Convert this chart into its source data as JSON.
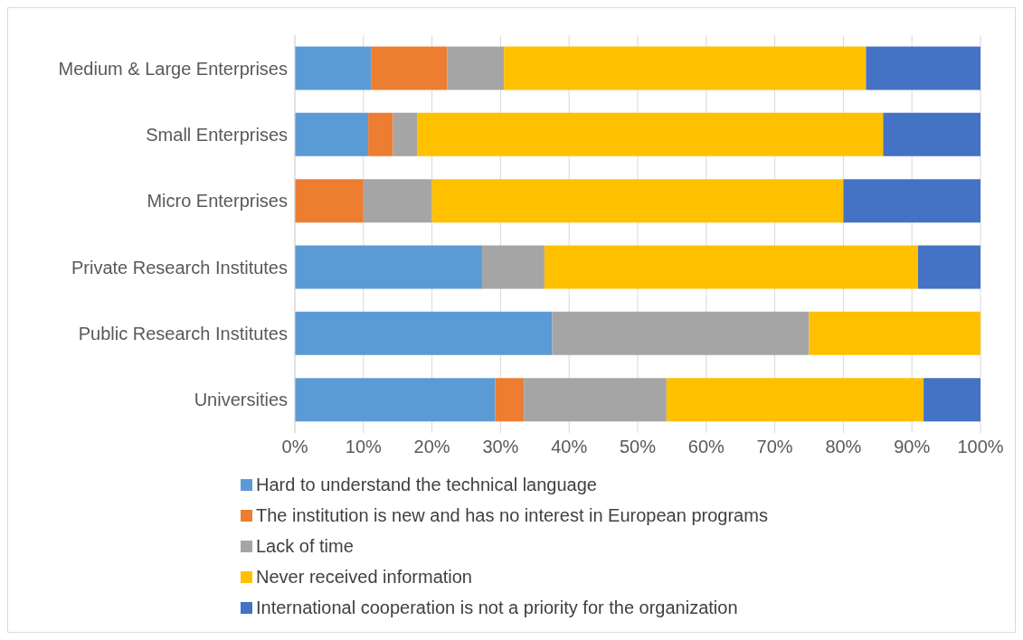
{
  "chart_data": {
    "type": "bar",
    "orientation": "horizontal",
    "stacked": true,
    "categories": [
      "Medium & Large Enterprises",
      "Small Enterprises",
      "Micro Enterprises",
      "Private Research Institutes",
      "Public Research Institutes",
      "Universities"
    ],
    "series": [
      {
        "name": "Hard to understand the technical language",
        "color": "#5b9bd5",
        "values": [
          11.1,
          10.7,
          0,
          27.3,
          37.5,
          29.2
        ]
      },
      {
        "name": "The institution is new and has no interest in European programs",
        "color": "#ed7d31",
        "values": [
          11.1,
          3.6,
          10,
          0,
          0,
          4.2
        ]
      },
      {
        "name": "Lack of time",
        "color": "#a5a5a5",
        "values": [
          8.3,
          3.6,
          10,
          9.1,
          37.5,
          20.8
        ]
      },
      {
        "name": "Never received information",
        "color": "#ffc000",
        "values": [
          52.8,
          67.9,
          60,
          54.5,
          25,
          37.5
        ]
      },
      {
        "name": "International cooperation is not a priority for the organization",
        "color": "#4472c4",
        "values": [
          16.7,
          14.3,
          20,
          9.1,
          0,
          8.3
        ]
      }
    ],
    "xlim": [
      0,
      100
    ],
    "xticks": [
      {
        "value": 0,
        "label": "0%"
      },
      {
        "value": 10,
        "label": "10%"
      },
      {
        "value": 20,
        "label": "20%"
      },
      {
        "value": 30,
        "label": "30%"
      },
      {
        "value": 40,
        "label": "40%"
      },
      {
        "value": 50,
        "label": "50%"
      },
      {
        "value": 60,
        "label": "60%"
      },
      {
        "value": 70,
        "label": "70%"
      },
      {
        "value": 80,
        "label": "80%"
      },
      {
        "value": 90,
        "label": "90%"
      },
      {
        "value": 100,
        "label": "100%"
      }
    ],
    "grid": "x",
    "legend": "bottom"
  }
}
